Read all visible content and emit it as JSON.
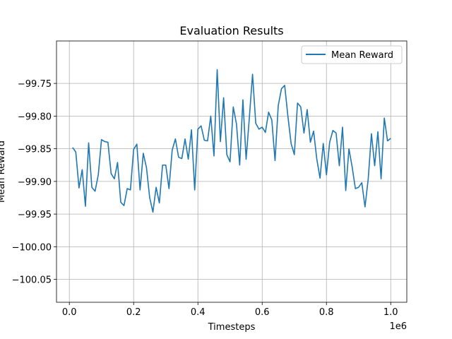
{
  "chart_data": {
    "type": "line",
    "title": "Evaluation Results",
    "xlabel": "Timesteps",
    "ylabel": "Mean Reward",
    "x_offset_label": "1e6",
    "x_multiplier": 1000000,
    "xlim": [
      -40000,
      1050000
    ],
    "ylim": [
      -100.085,
      -99.685
    ],
    "x_ticks": [
      0,
      200000,
      400000,
      600000,
      800000,
      1000000
    ],
    "x_tick_labels": [
      "0.0",
      "0.2",
      "0.4",
      "0.6",
      "0.8",
      "1.0"
    ],
    "y_ticks": [
      -99.75,
      -99.8,
      -99.85,
      -99.9,
      -99.95,
      -100.0,
      -100.05
    ],
    "y_tick_labels": [
      "−99.75",
      "−99.80",
      "−99.85",
      "−99.90",
      "−99.95",
      "−100.00",
      "−100.05"
    ],
    "grid": true,
    "legend_position": "top-right",
    "line_color": "#1f77b4",
    "series": [
      {
        "name": "Mean Reward",
        "x": [
          10000,
          20000,
          30000,
          40000,
          50000,
          60000,
          70000,
          80000,
          90000,
          100000,
          110000,
          120000,
          130000,
          140000,
          150000,
          160000,
          170000,
          180000,
          190000,
          200000,
          210000,
          220000,
          230000,
          240000,
          250000,
          260000,
          270000,
          280000,
          290000,
          300000,
          310000,
          320000,
          330000,
          340000,
          350000,
          360000,
          370000,
          380000,
          390000,
          400000,
          410000,
          420000,
          430000,
          440000,
          450000,
          460000,
          470000,
          480000,
          490000,
          500000,
          510000,
          520000,
          530000,
          540000,
          550000,
          560000,
          570000,
          580000,
          590000,
          600000,
          610000,
          620000,
          630000,
          640000,
          650000,
          660000,
          670000,
          680000,
          690000,
          700000,
          710000,
          720000,
          730000,
          740000,
          750000,
          760000,
          770000,
          780000,
          790000,
          800000,
          810000,
          820000,
          830000,
          840000,
          850000,
          860000,
          870000,
          880000,
          890000,
          900000,
          910000,
          920000,
          930000,
          940000,
          950000,
          960000,
          970000,
          980000,
          990000,
          1000000
        ],
        "y": [
          -99.848,
          -99.855,
          -99.91,
          -99.882,
          -99.938,
          -99.841,
          -99.909,
          -99.915,
          -99.89,
          -99.836,
          -99.839,
          -99.84,
          -99.888,
          -99.896,
          -99.871,
          -99.932,
          -99.937,
          -99.911,
          -99.913,
          -99.851,
          -99.843,
          -99.913,
          -99.857,
          -99.879,
          -99.925,
          -99.947,
          -99.909,
          -99.933,
          -99.875,
          -99.875,
          -99.911,
          -99.852,
          -99.835,
          -99.863,
          -99.865,
          -99.835,
          -99.866,
          -99.821,
          -99.913,
          -99.82,
          -99.815,
          -99.837,
          -99.838,
          -99.8,
          -99.861,
          -99.729,
          -99.839,
          -99.772,
          -99.859,
          -99.87,
          -99.786,
          -99.812,
          -99.875,
          -99.775,
          -99.866,
          -99.803,
          -99.736,
          -99.811,
          -99.82,
          -99.817,
          -99.825,
          -99.794,
          -99.806,
          -99.868,
          -99.784,
          -99.758,
          -99.753,
          -99.8,
          -99.842,
          -99.859,
          -99.78,
          -99.786,
          -99.826,
          -99.79,
          -99.84,
          -99.823,
          -99.866,
          -99.895,
          -99.842,
          -99.89,
          -99.84,
          -99.822,
          -99.826,
          -99.876,
          -99.817,
          -99.914,
          -99.85,
          -99.878,
          -99.911,
          -99.909,
          -99.902,
          -99.939,
          -99.896,
          -99.827,
          -99.876,
          -99.824,
          -99.896,
          -99.803,
          -99.838,
          -99.834
        ]
      }
    ]
  }
}
